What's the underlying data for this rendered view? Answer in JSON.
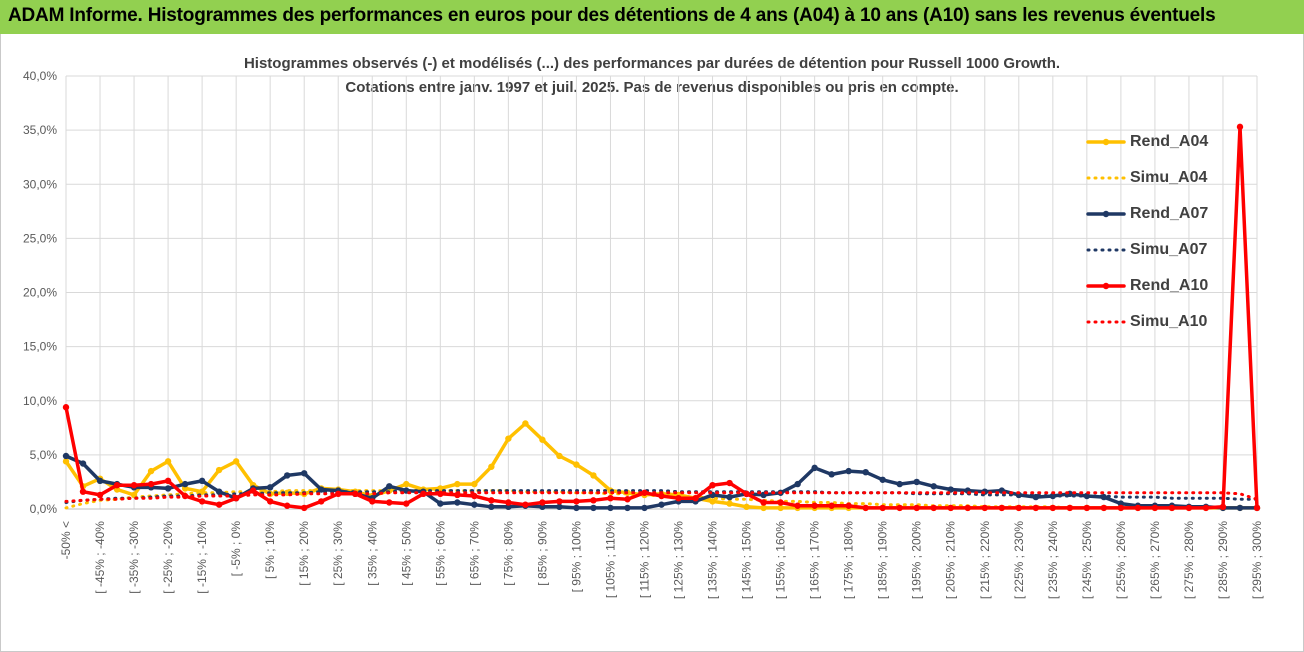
{
  "banner": {
    "title": "ADAM Informe. Histogrammes des performances en euros pour des détentions de 4 ans (A04) à 10 ans (A10) sans les revenus éventuels"
  },
  "chart_data": {
    "type": "line",
    "title": "Histogrammes observés (-) et modélisés (...) des performances par durées de détention pour Russell 1000 Growth.",
    "subtitle": "Cotations entre janv. 1997 et juil. 2025. Pas de revenus disponibles ou pris en compte.",
    "xlabel": "",
    "ylabel": "",
    "ylim": [
      0,
      40
    ],
    "yticks": [
      "0,0%",
      "5,0%",
      "10,0%",
      "15,0%",
      "20,0%",
      "25,0%",
      "30,0%",
      "35,0%",
      "40,0%"
    ],
    "grid": true,
    "legend_position": "right",
    "categories": [
      "-50% <",
      "[ -50% ; -45%",
      "[ -45% ; -40%",
      "[ -40% ; -35%",
      "[ -35% ; -30%",
      "[ -30% ; -25%",
      "[ -25% ; -20%",
      "[ -20% ; -15%",
      "[ -15% ; -10%",
      "[ -10% ; -5%",
      "[ -5% ; 0%",
      "[ 0% ; 5%",
      "[ 5% ; 10%",
      "[ 10% ; 15%",
      "[ 15% ; 20%",
      "[ 20% ; 25%",
      "[ 25% ; 30%",
      "[ 30% ; 35%",
      "[ 35% ; 40%",
      "[ 40% ; 45%",
      "[ 45% ; 50%",
      "[ 50% ; 55%",
      "[ 55% ; 60%",
      "[ 60% ; 65%",
      "[ 65% ; 70%",
      "[ 70% ; 75%",
      "[ 75% ; 80%",
      "[ 80% ; 85%",
      "[ 85% ; 90%",
      "[ 90% ; 95%",
      "[ 95% ; 100%",
      "[ 100% ; 105%",
      "[ 105% ; 110%",
      "[ 110% ; 115%",
      "[ 115% ; 120%",
      "[ 120% ; 125%",
      "[ 125% ; 130%",
      "[ 130% ; 135%",
      "[ 135% ; 140%",
      "[ 140% ; 145%",
      "[ 145% ; 150%",
      "[ 150% ; 155%",
      "[ 155% ; 160%",
      "[ 160% ; 165%",
      "[ 165% ; 170%",
      "[ 170% ; 175%",
      "[ 175% ; 180%",
      "[ 180% ; 185%",
      "[ 185% ; 190%",
      "[ 190% ; 195%",
      "[ 195% ; 200%",
      "[ 200% ; 205%",
      "[ 205% ; 210%",
      "[ 210% ; 215%",
      "[ 215% ; 220%",
      "[ 220% ; 225%",
      "[ 225% ; 230%",
      "[ 230% ; 235%",
      "[ 235% ; 240%",
      "[ 240% ; 245%",
      "[ 245% ; 250%",
      "[ 250% ; 255%",
      "[ 255% ; 260%",
      "[ 260% ; 265%",
      "[ 265% ; 270%",
      "[ 270% ; 275%",
      "[ 275% ; 280%",
      "[ 280% ; 285%",
      "[ 285% ; 290%",
      "[ 290% ; 295%",
      "[ 295% ; 300%"
    ],
    "series": [
      {
        "name": "Rend_A04",
        "color": "#ffc000",
        "dash": false,
        "marker": true,
        "values": [
          4.4,
          2.1,
          2.8,
          1.8,
          1.3,
          3.5,
          4.4,
          1.9,
          1.6,
          3.6,
          4.4,
          2.2,
          1.4,
          1.5,
          1.4,
          1.9,
          1.8,
          1.6,
          1.2,
          1.7,
          2.3,
          1.8,
          1.9,
          2.3,
          2.3,
          3.9,
          6.5,
          7.9,
          6.4,
          4.9,
          4.1,
          3.1,
          1.7,
          1.5,
          1.3,
          1.4,
          1.3,
          1.0,
          0.7,
          0.5,
          0.2,
          0.1,
          0.1,
          0.1,
          0.1,
          0.1,
          0.1,
          0.1,
          0.1,
          0.1,
          0.1,
          0.1,
          0.1,
          0.1,
          0.1,
          0.1,
          0.1,
          0.1,
          0.1,
          0.1,
          0.1,
          0.1,
          0.1,
          0.1,
          0.1,
          0.1,
          0.1,
          0.1,
          0.1,
          0.1,
          0.1
        ]
      },
      {
        "name": "Simu_A04",
        "color": "#ffc000",
        "dash": true,
        "marker": false,
        "values": [
          0.1,
          0.5,
          0.8,
          0.9,
          1.1,
          1.2,
          1.3,
          1.4,
          1.5,
          1.5,
          1.6,
          1.6,
          1.6,
          1.7,
          1.7,
          1.7,
          1.7,
          1.7,
          1.7,
          1.7,
          1.7,
          1.7,
          1.7,
          1.7,
          1.7,
          1.7,
          1.7,
          1.6,
          1.6,
          1.6,
          1.5,
          1.5,
          1.4,
          1.4,
          1.3,
          1.2,
          1.2,
          1.1,
          1.0,
          0.9,
          0.9,
          0.8,
          0.7,
          0.7,
          0.6,
          0.6,
          0.5,
          0.5,
          0.4,
          0.4,
          0.4,
          0.3,
          0.3,
          0.3,
          0.2,
          0.2,
          0.2,
          0.2,
          0.2,
          0.1,
          0.1,
          0.1,
          0.1,
          0.1,
          0.1,
          0.1,
          0.1,
          0.1,
          0.1,
          0.1,
          0.1
        ]
      },
      {
        "name": "Rend_A07",
        "color": "#1f3864",
        "dash": false,
        "marker": true,
        "values": [
          4.9,
          4.2,
          2.6,
          2.3,
          2.0,
          2.0,
          1.9,
          2.3,
          2.6,
          1.6,
          1.0,
          1.9,
          2.0,
          3.1,
          3.3,
          1.8,
          1.7,
          1.4,
          1.0,
          2.1,
          1.7,
          1.6,
          0.5,
          0.6,
          0.4,
          0.2,
          0.2,
          0.3,
          0.2,
          0.2,
          0.1,
          0.1,
          0.1,
          0.1,
          0.1,
          0.4,
          0.7,
          0.7,
          1.3,
          1.1,
          1.4,
          1.3,
          1.5,
          2.3,
          3.8,
          3.2,
          3.5,
          3.4,
          2.7,
          2.3,
          2.5,
          2.1,
          1.8,
          1.7,
          1.6,
          1.7,
          1.3,
          1.1,
          1.2,
          1.4,
          1.2,
          1.1,
          0.5,
          0.3,
          0.3,
          0.3,
          0.2,
          0.2,
          0.1,
          0.1,
          0.1
        ]
      },
      {
        "name": "Simu_A07",
        "color": "#1f3864",
        "dash": true,
        "marker": false,
        "values": [
          0.6,
          0.8,
          0.9,
          1.0,
          1.0,
          1.1,
          1.2,
          1.2,
          1.3,
          1.3,
          1.4,
          1.4,
          1.5,
          1.5,
          1.5,
          1.6,
          1.6,
          1.6,
          1.6,
          1.6,
          1.7,
          1.7,
          1.7,
          1.7,
          1.7,
          1.7,
          1.7,
          1.7,
          1.7,
          1.7,
          1.7,
          1.7,
          1.7,
          1.7,
          1.7,
          1.7,
          1.6,
          1.6,
          1.6,
          1.6,
          1.6,
          1.6,
          1.6,
          1.6,
          1.6,
          1.5,
          1.5,
          1.5,
          1.5,
          1.5,
          1.4,
          1.4,
          1.4,
          1.4,
          1.3,
          1.3,
          1.3,
          1.3,
          1.2,
          1.2,
          1.2,
          1.2,
          1.1,
          1.1,
          1.1,
          1.0,
          1.0,
          1.0,
          1.0,
          0.9,
          0.9
        ]
      },
      {
        "name": "Rend_A10",
        "color": "#ff0000",
        "dash": false,
        "marker": true,
        "values": [
          9.4,
          1.6,
          1.3,
          2.2,
          2.2,
          2.3,
          2.6,
          1.2,
          0.7,
          0.4,
          1.0,
          1.7,
          0.7,
          0.3,
          0.1,
          0.7,
          1.4,
          1.4,
          0.7,
          0.6,
          0.5,
          1.4,
          1.4,
          1.3,
          1.2,
          0.8,
          0.6,
          0.4,
          0.6,
          0.7,
          0.7,
          0.8,
          1.0,
          0.9,
          1.5,
          1.2,
          1.0,
          1.0,
          2.2,
          2.4,
          1.4,
          0.6,
          0.6,
          0.3,
          0.3,
          0.3,
          0.3,
          0.1,
          0.1,
          0.1,
          0.1,
          0.1,
          0.1,
          0.1,
          0.1,
          0.1,
          0.1,
          0.1,
          0.1,
          0.1,
          0.1,
          0.1,
          0.1,
          0.1,
          0.1,
          0.1,
          0.1,
          0.1,
          0.2,
          35.3,
          0.1
        ]
      },
      {
        "name": "Simu_A10",
        "color": "#ff0000",
        "dash": true,
        "marker": false,
        "values": [
          0.7,
          0.8,
          0.9,
          0.9,
          1.0,
          1.0,
          1.1,
          1.1,
          1.2,
          1.2,
          1.2,
          1.3,
          1.3,
          1.3,
          1.4,
          1.4,
          1.4,
          1.4,
          1.4,
          1.5,
          1.5,
          1.5,
          1.5,
          1.5,
          1.5,
          1.5,
          1.5,
          1.5,
          1.5,
          1.5,
          1.5,
          1.5,
          1.5,
          1.5,
          1.5,
          1.5,
          1.5,
          1.5,
          1.5,
          1.5,
          1.5,
          1.5,
          1.5,
          1.5,
          1.5,
          1.5,
          1.5,
          1.5,
          1.5,
          1.5,
          1.5,
          1.5,
          1.5,
          1.5,
          1.5,
          1.5,
          1.5,
          1.5,
          1.5,
          1.5,
          1.5,
          1.5,
          1.5,
          1.5,
          1.5,
          1.5,
          1.5,
          1.5,
          1.5,
          1.4,
          0.9
        ]
      }
    ]
  }
}
